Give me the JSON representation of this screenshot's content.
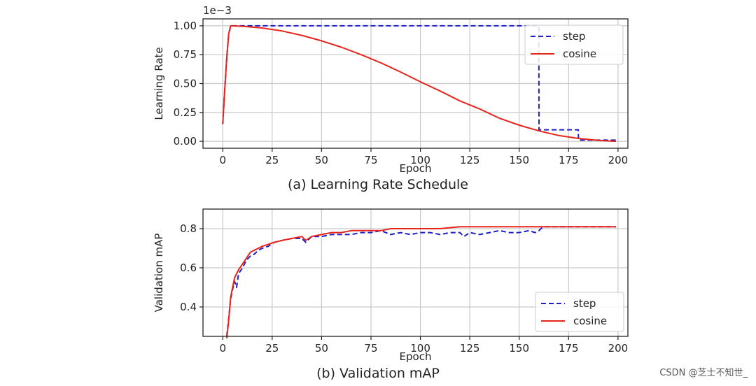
{
  "chart_data": [
    {
      "type": "line",
      "title": "(a) Learning Rate Schedule",
      "xlabel": "Epoch",
      "ylabel": "Learning Rate",
      "yscale_label": "1e−3",
      "xlim": [
        -10,
        205
      ],
      "ylim": [
        -0.06,
        1.06
      ],
      "xticks": [
        0,
        25,
        50,
        75,
        100,
        125,
        150,
        175,
        200
      ],
      "yticks": [
        0.0,
        0.25,
        0.5,
        0.75,
        1.0
      ],
      "ytick_labels": [
        "0.00",
        "0.25",
        "0.50",
        "0.75",
        "1.00"
      ],
      "grid": true,
      "legend_position": "top-right",
      "series": [
        {
          "name": "step",
          "color": "#1f1fcc",
          "style": "dashed",
          "x": [
            0,
            1,
            2,
            3,
            4,
            159.9,
            160,
            179.9,
            180,
            199
          ],
          "y": [
            0.15,
            0.45,
            0.72,
            0.93,
            1.0,
            1.0,
            0.1,
            0.1,
            0.01,
            0.01
          ]
        },
        {
          "name": "cosine",
          "color": "#e8241c",
          "style": "solid",
          "x": [
            0,
            1,
            2,
            3,
            4,
            10,
            20,
            30,
            40,
            50,
            60,
            70,
            80,
            90,
            100,
            110,
            120,
            130,
            140,
            150,
            160,
            170,
            180,
            190,
            199
          ],
          "y": [
            0.15,
            0.45,
            0.72,
            0.93,
            1.0,
            0.996,
            0.981,
            0.955,
            0.917,
            0.87,
            0.815,
            0.75,
            0.68,
            0.6,
            0.515,
            0.435,
            0.35,
            0.28,
            0.2,
            0.14,
            0.09,
            0.05,
            0.025,
            0.008,
            0.0
          ]
        }
      ]
    },
    {
      "type": "line",
      "title": "(b) Validation mAP",
      "xlabel": "Epoch",
      "ylabel": "Validation mAP",
      "xlim": [
        -10,
        205
      ],
      "ylim": [
        0.25,
        0.9
      ],
      "xticks": [
        0,
        25,
        50,
        75,
        100,
        125,
        150,
        175,
        200
      ],
      "yticks": [
        0.4,
        0.6,
        0.8
      ],
      "ytick_labels": [
        "0.4",
        "0.6",
        "0.8"
      ],
      "grid": true,
      "legend_position": "lower-right",
      "series": [
        {
          "name": "step",
          "color": "#1f1fcc",
          "style": "dashed",
          "x": [
            2,
            3,
            4,
            5,
            6,
            7,
            8,
            10,
            12,
            14,
            16,
            18,
            20,
            23,
            26,
            30,
            35,
            40,
            42,
            45,
            50,
            55,
            60,
            65,
            70,
            75,
            80,
            85,
            90,
            95,
            100,
            105,
            110,
            115,
            120,
            122,
            125,
            130,
            135,
            140,
            145,
            150,
            155,
            158,
            160,
            162,
            170,
            180,
            190,
            199
          ],
          "y": [
            0.25,
            0.34,
            0.44,
            0.49,
            0.53,
            0.5,
            0.57,
            0.6,
            0.64,
            0.66,
            0.67,
            0.69,
            0.7,
            0.71,
            0.73,
            0.74,
            0.75,
            0.75,
            0.73,
            0.76,
            0.76,
            0.77,
            0.77,
            0.77,
            0.78,
            0.78,
            0.79,
            0.77,
            0.78,
            0.77,
            0.78,
            0.78,
            0.77,
            0.78,
            0.78,
            0.76,
            0.78,
            0.77,
            0.78,
            0.79,
            0.78,
            0.78,
            0.79,
            0.78,
            0.79,
            0.81,
            0.81,
            0.81,
            0.81,
            0.81
          ]
        },
        {
          "name": "cosine",
          "color": "#e8241c",
          "style": "solid",
          "x": [
            2,
            3,
            4,
            5,
            6,
            8,
            10,
            12,
            14,
            16,
            18,
            20,
            23,
            26,
            30,
            35,
            40,
            42,
            45,
            50,
            55,
            60,
            65,
            70,
            75,
            80,
            85,
            90,
            95,
            100,
            110,
            120,
            130,
            140,
            150,
            160,
            170,
            180,
            190,
            199
          ],
          "y": [
            0.24,
            0.33,
            0.45,
            0.5,
            0.55,
            0.59,
            0.62,
            0.65,
            0.68,
            0.69,
            0.7,
            0.71,
            0.72,
            0.73,
            0.74,
            0.75,
            0.76,
            0.74,
            0.76,
            0.77,
            0.78,
            0.78,
            0.79,
            0.79,
            0.79,
            0.79,
            0.8,
            0.8,
            0.8,
            0.8,
            0.8,
            0.81,
            0.81,
            0.81,
            0.81,
            0.81,
            0.81,
            0.81,
            0.81,
            0.81
          ]
        }
      ]
    }
  ],
  "watermark": "CSDN @芝士不知世_"
}
